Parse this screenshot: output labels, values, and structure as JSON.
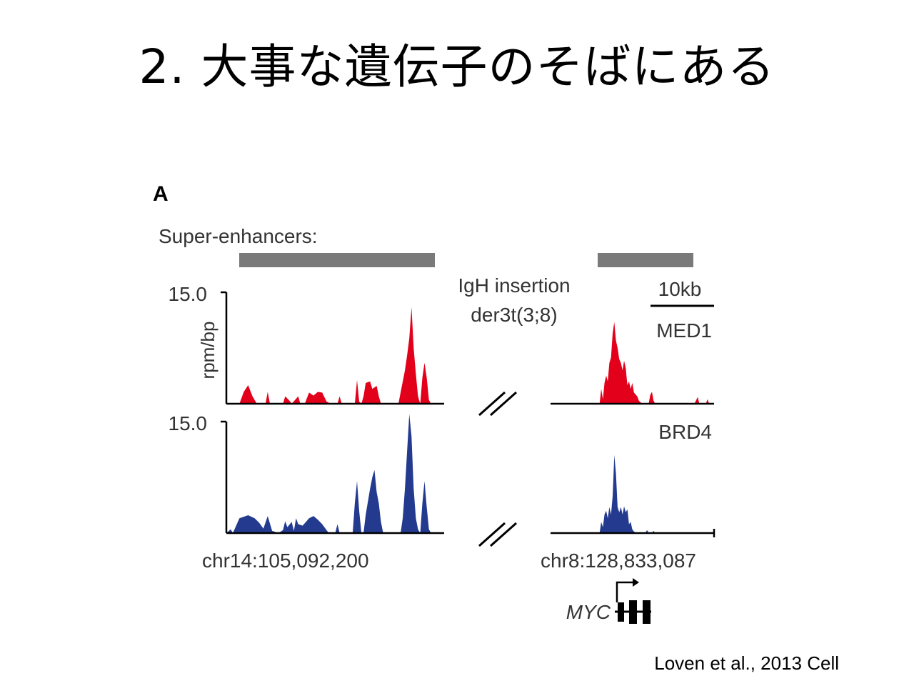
{
  "slide": {
    "title": "2. 大事な遺伝子のそばにある",
    "citation": "Loven et al., 2013 Cell"
  },
  "chart_data": {
    "type": "area",
    "panel_label": "A",
    "super_enhancers_label": "Super-enhancers:",
    "ylabel": "rpm/bp",
    "ylim": [
      0,
      15.0
    ],
    "ytick_label": "15.0",
    "scale_bar_label": "10kb",
    "break_label_line1": "IgH insertion",
    "break_label_line2": "der3t(3;8)",
    "left_locus_label": "chr14:105,092,200",
    "right_locus_label": "chr8:128,833,087",
    "gene_label": "MYC",
    "colors": {
      "MED1": "#e2001a",
      "BRD4": "#233a8f",
      "super_enhancer_bar": "#7a7a7a",
      "axis": "#000000"
    },
    "series": [
      {
        "name": "MED1",
        "left_region": [
          [
            0.0,
            0
          ],
          [
            0.06,
            0
          ],
          [
            0.08,
            1.6
          ],
          [
            0.1,
            2.5
          ],
          [
            0.12,
            1.0
          ],
          [
            0.14,
            0
          ],
          [
            0.18,
            0
          ],
          [
            0.19,
            1.6
          ],
          [
            0.2,
            0
          ],
          [
            0.26,
            0
          ],
          [
            0.27,
            1.0
          ],
          [
            0.29,
            0.4
          ],
          [
            0.3,
            0
          ],
          [
            0.33,
            1.0
          ],
          [
            0.34,
            0
          ],
          [
            0.36,
            0
          ],
          [
            0.38,
            1.5
          ],
          [
            0.4,
            1.1
          ],
          [
            0.42,
            1.6
          ],
          [
            0.44,
            1.5
          ],
          [
            0.46,
            0.3
          ],
          [
            0.48,
            0
          ],
          [
            0.51,
            0
          ],
          [
            0.52,
            1.0
          ],
          [
            0.53,
            0
          ],
          [
            0.59,
            0
          ],
          [
            0.6,
            3.2
          ],
          [
            0.61,
            0.3
          ],
          [
            0.62,
            0
          ],
          [
            0.63,
            1.0
          ],
          [
            0.64,
            2.8
          ],
          [
            0.66,
            3.0
          ],
          [
            0.67,
            2.0
          ],
          [
            0.69,
            2.4
          ],
          [
            0.7,
            1.0
          ],
          [
            0.71,
            0
          ],
          [
            0.79,
            0
          ],
          [
            0.8,
            1.5
          ],
          [
            0.82,
            4.5
          ],
          [
            0.83,
            6.5
          ],
          [
            0.84,
            8.8
          ],
          [
            0.85,
            13.0
          ],
          [
            0.86,
            7.5
          ],
          [
            0.87,
            4.0
          ],
          [
            0.88,
            1.0
          ],
          [
            0.89,
            0
          ],
          [
            0.9,
            3.5
          ],
          [
            0.91,
            5.5
          ],
          [
            0.92,
            3.5
          ],
          [
            0.93,
            0.5
          ],
          [
            0.94,
            0
          ],
          [
            1.0,
            0
          ]
        ],
        "right_region": [
          [
            0.0,
            0
          ],
          [
            0.3,
            0
          ],
          [
            0.31,
            2.0
          ],
          [
            0.32,
            0.6
          ],
          [
            0.33,
            2.8
          ],
          [
            0.34,
            3.8
          ],
          [
            0.35,
            3.0
          ],
          [
            0.36,
            5.5
          ],
          [
            0.37,
            6.2
          ],
          [
            0.38,
            9.5
          ],
          [
            0.39,
            11.0
          ],
          [
            0.4,
            8.5
          ],
          [
            0.41,
            7.5
          ],
          [
            0.42,
            6.0
          ],
          [
            0.43,
            5.5
          ],
          [
            0.44,
            4.5
          ],
          [
            0.45,
            5.8
          ],
          [
            0.46,
            4.8
          ],
          [
            0.47,
            2.5
          ],
          [
            0.48,
            3.0
          ],
          [
            0.49,
            2.0
          ],
          [
            0.5,
            2.8
          ],
          [
            0.51,
            1.5
          ],
          [
            0.53,
            1.0
          ],
          [
            0.54,
            0.4
          ],
          [
            0.56,
            0
          ],
          [
            0.6,
            0
          ],
          [
            0.61,
            1.2
          ],
          [
            0.62,
            1.6
          ],
          [
            0.63,
            0.4
          ],
          [
            0.64,
            0
          ],
          [
            0.88,
            0
          ],
          [
            0.9,
            0.9
          ],
          [
            0.91,
            0
          ],
          [
            0.95,
            0
          ],
          [
            0.96,
            0.6
          ],
          [
            0.97,
            0
          ],
          [
            1.0,
            0
          ]
        ]
      },
      {
        "name": "BRD4",
        "left_region": [
          [
            0.0,
            0
          ],
          [
            0.02,
            0.5
          ],
          [
            0.03,
            0
          ],
          [
            0.06,
            2.0
          ],
          [
            0.1,
            2.4
          ],
          [
            0.13,
            2.0
          ],
          [
            0.15,
            1.4
          ],
          [
            0.17,
            0.6
          ],
          [
            0.19,
            2.3
          ],
          [
            0.21,
            0.3
          ],
          [
            0.24,
            0
          ],
          [
            0.26,
            0.4
          ],
          [
            0.27,
            1.6
          ],
          [
            0.28,
            0.8
          ],
          [
            0.3,
            1.5
          ],
          [
            0.31,
            0.3
          ],
          [
            0.32,
            2.0
          ],
          [
            0.33,
            1.2
          ],
          [
            0.35,
            1.0
          ],
          [
            0.38,
            2.0
          ],
          [
            0.4,
            2.3
          ],
          [
            0.42,
            1.8
          ],
          [
            0.44,
            1.2
          ],
          [
            0.47,
            0
          ],
          [
            0.5,
            0
          ],
          [
            0.51,
            1.2
          ],
          [
            0.52,
            0
          ],
          [
            0.58,
            0
          ],
          [
            0.59,
            4.0
          ],
          [
            0.6,
            7.0
          ],
          [
            0.61,
            3.0
          ],
          [
            0.62,
            0
          ],
          [
            0.63,
            0
          ],
          [
            0.64,
            2.5
          ],
          [
            0.66,
            6.0
          ],
          [
            0.67,
            7.5
          ],
          [
            0.68,
            8.5
          ],
          [
            0.69,
            5.5
          ],
          [
            0.7,
            4.0
          ],
          [
            0.71,
            1.5
          ],
          [
            0.72,
            0
          ],
          [
            0.8,
            0
          ],
          [
            0.81,
            2.0
          ],
          [
            0.82,
            6.0
          ],
          [
            0.83,
            11.0
          ],
          [
            0.84,
            16.0
          ],
          [
            0.85,
            13.0
          ],
          [
            0.86,
            6.0
          ],
          [
            0.87,
            2.0
          ],
          [
            0.88,
            0.5
          ],
          [
            0.89,
            0
          ],
          [
            0.9,
            4.0
          ],
          [
            0.91,
            7.0
          ],
          [
            0.92,
            3.5
          ],
          [
            0.93,
            0.5
          ],
          [
            0.94,
            0
          ],
          [
            1.0,
            0
          ]
        ],
        "right_region": [
          [
            0.0,
            0
          ],
          [
            0.3,
            0
          ],
          [
            0.31,
            1.5
          ],
          [
            0.32,
            0.8
          ],
          [
            0.33,
            2.5
          ],
          [
            0.34,
            3.0
          ],
          [
            0.35,
            2.0
          ],
          [
            0.36,
            3.5
          ],
          [
            0.37,
            2.5
          ],
          [
            0.38,
            5.0
          ],
          [
            0.39,
            10.5
          ],
          [
            0.4,
            8.0
          ],
          [
            0.41,
            3.5
          ],
          [
            0.42,
            2.8
          ],
          [
            0.43,
            3.5
          ],
          [
            0.44,
            2.5
          ],
          [
            0.45,
            3.6
          ],
          [
            0.46,
            2.8
          ],
          [
            0.47,
            3.2
          ],
          [
            0.48,
            1.2
          ],
          [
            0.49,
            1.5
          ],
          [
            0.5,
            0.5
          ],
          [
            0.51,
            0.2
          ],
          [
            0.53,
            0
          ],
          [
            0.58,
            0
          ],
          [
            0.59,
            0.4
          ],
          [
            0.6,
            0
          ],
          [
            0.62,
            0
          ],
          [
            0.63,
            0.3
          ],
          [
            0.64,
            0
          ],
          [
            1.0,
            0
          ]
        ]
      }
    ]
  }
}
